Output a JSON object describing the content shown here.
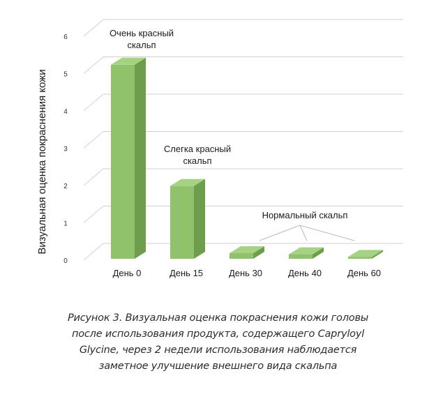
{
  "chart_data": {
    "type": "bar",
    "three_d": true,
    "categories": [
      "День 0",
      "День 15",
      "День 30",
      "День 40",
      "День 60"
    ],
    "values": [
      5.2,
      1.95,
      0.15,
      0.12,
      0.05
    ],
    "ylabel": "Визуальная оценка покраснения кожи",
    "xlabel": "",
    "ylim": [
      0,
      6
    ],
    "yticks": [
      0,
      1,
      2,
      3,
      4,
      5,
      6
    ],
    "grid": true,
    "legend": "none",
    "bar_color": "#8fc26a",
    "annotations": [
      {
        "lines": [
          "Очень красный",
          "скальп"
        ]
      },
      {
        "lines": [
          "Слегка красный",
          "скальп"
        ]
      },
      {
        "lines": [
          "Нормальный скальп"
        ]
      }
    ]
  },
  "caption": {
    "lines": [
      "Рисунок 3. Визуальная оценка покраснения кожи головы",
      "после использования продукта, содержащего Capryloyl",
      "Glycine, через 2 недели использования наблюдается",
      "заметное улучшение внешнего вида скальпа"
    ]
  }
}
